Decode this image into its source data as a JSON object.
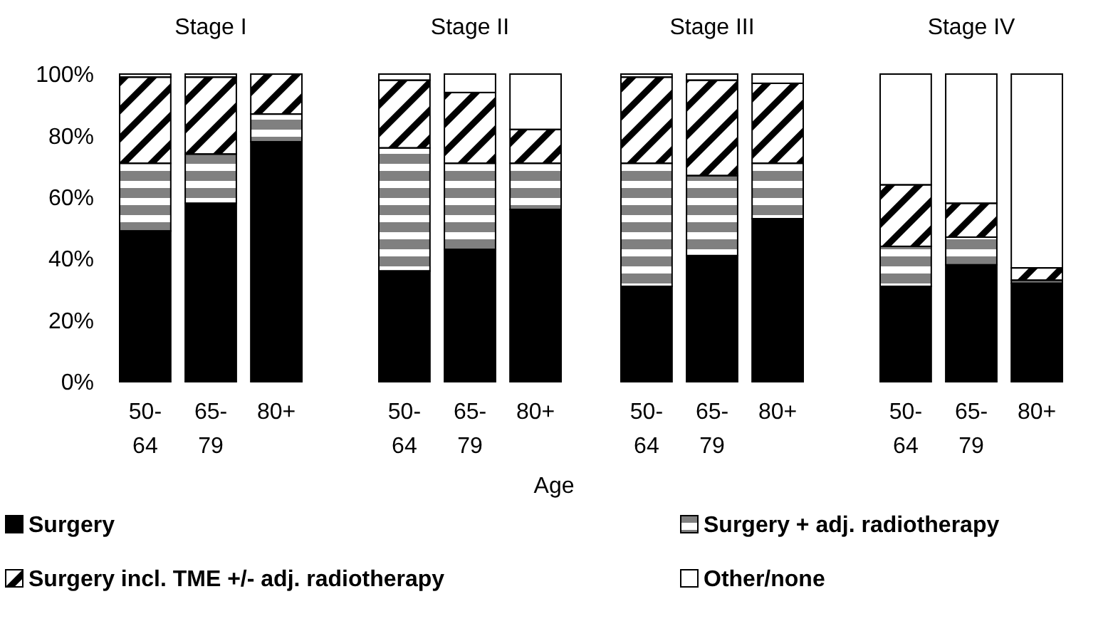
{
  "chart_data": [
    {
      "type": "bar",
      "title": "Stage I",
      "annotations": [
        "Age"
      ],
      "categories": [
        "50-64",
        "65-79",
        "80+"
      ],
      "stacked": true,
      "ylim": [
        0,
        100
      ],
      "yticks": [
        {
          "value": 0,
          "label": "0%"
        },
        {
          "value": 20,
          "label": "20%"
        },
        {
          "value": 40,
          "label": "40%"
        },
        {
          "value": 60,
          "label": "60%"
        },
        {
          "value": 80,
          "label": "80%"
        },
        {
          "value": 100,
          "label": "100%"
        }
      ],
      "legend": "bottom",
      "series": [
        {
          "name": "Surgery",
          "color": "#000000",
          "values": [
            49,
            58,
            78
          ]
        },
        {
          "name": "Surgery +  adj. radiotherapy",
          "color": "#808080",
          "values": [
            22,
            16,
            9
          ]
        },
        {
          "name": "Surgery incl. TME +/- adj. radiotherapy",
          "color": "#000000",
          "values": [
            28,
            25,
            13
          ]
        },
        {
          "name": "Other/none",
          "color": "#ffffff",
          "values": [
            1,
            1,
            0
          ]
        }
      ]
    },
    {
      "type": "bar",
      "title": "Stage II",
      "categories": [
        "50-64",
        "65-79",
        "80+"
      ],
      "stacked": true,
      "ylim": [
        0,
        100
      ],
      "tick_labels": "x",
      "series": [
        {
          "color": "#000000",
          "values": [
            36,
            43,
            56
          ]
        },
        {
          "color": "#808080",
          "values": [
            40,
            28,
            15
          ]
        },
        {
          "color": "#000000",
          "values": [
            22,
            23,
            11
          ]
        },
        {
          "color": "#ffffff",
          "values": [
            2,
            6,
            18
          ]
        }
      ]
    },
    {
      "type": "bar",
      "title": "Stage III",
      "categories": [
        "50-64",
        "65-79",
        "80+"
      ],
      "stacked": true,
      "ylim": [
        0,
        100
      ],
      "tick_labels": "x",
      "series": [
        {
          "color": "#000000",
          "values": [
            31,
            41,
            53
          ]
        },
        {
          "color": "#808080",
          "values": [
            40,
            26,
            18
          ]
        },
        {
          "color": "#000000",
          "values": [
            28,
            31,
            26
          ]
        },
        {
          "color": "#ffffff",
          "values": [
            1,
            2,
            3
          ]
        }
      ]
    },
    {
      "type": "bar",
      "title": "Stage IV",
      "categories": [
        "50-64",
        "65-79",
        "80+"
      ],
      "stacked": true,
      "ylim": [
        0,
        100
      ],
      "tick_labels": "x",
      "series": [
        {
          "color": "#000000",
          "values": [
            31,
            38,
            32
          ]
        },
        {
          "color": "#808080",
          "values": [
            13,
            9,
            1
          ]
        },
        {
          "color": "#000000",
          "values": [
            20,
            11,
            4
          ]
        },
        {
          "color": "#ffffff",
          "values": [
            36,
            42,
            63
          ]
        }
      ]
    }
  ]
}
